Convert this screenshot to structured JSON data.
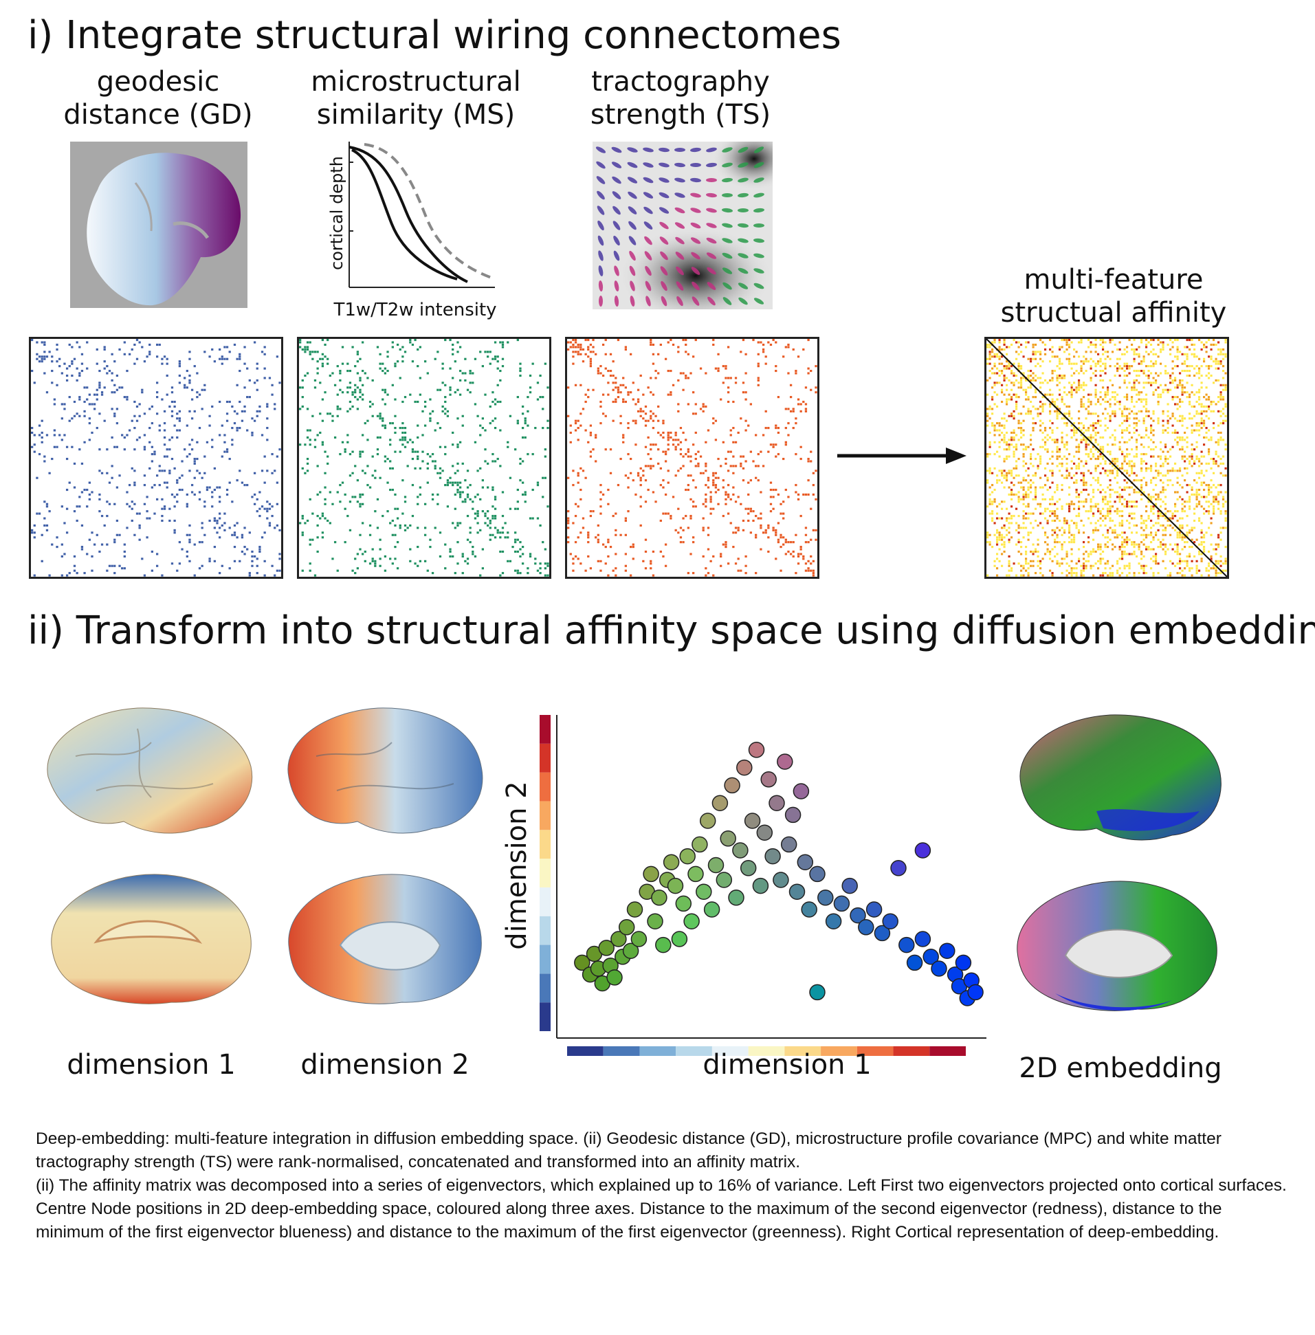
{
  "section_i": {
    "title": "i) Integrate structural wiring connectomes",
    "panels": [
      {
        "label_line1": "geodesic",
        "label_line2": "distance (GD)"
      },
      {
        "label_line1": "microstructural",
        "label_line2": "similarity (MS)"
      },
      {
        "label_line1": "tractography",
        "label_line2": "strength (TS)"
      }
    ],
    "ms_plot": {
      "ylabel": "cortical depth",
      "xlabel": "T1w/T2w intensity"
    },
    "result_label_line1": "multi-feature",
    "result_label_line2": "structual affinity",
    "colors": {
      "gd": "#4060a8",
      "ms": "#1e9060",
      "ts": "#e85a24",
      "affinity_light": "#ffe84a",
      "affinity_mid": "#f0a020",
      "affinity_dark": "#d03010"
    }
  },
  "section_ii": {
    "title": "ii) Transform into structural affinity space using diffusion embedding",
    "labels": {
      "dim1": "dimension 1",
      "dim2": "dimension 2",
      "embedding": "2D embedding"
    },
    "scatter": {
      "xlabel": "dimension 1",
      "ylabel": "dimension 2"
    }
  },
  "caption": {
    "p1": "Deep-embedding: multi-feature integration in diffusion embedding space. (ii) Geodesic distance (GD), microstructure profile covariance (MPC) and white matter tractography strength (TS) were rank-normalised, concatenated and transformed into an affinity matrix.",
    "p2": "(ii) The affinity matrix was decomposed into a series of eigenvectors, which explained up to 16% of variance. Left First two eigenvectors projected onto cortical surfaces. Centre Node positions in 2D deep-embedding space, coloured along three axes. Distance to the maximum of the second eigenvector (redness), distance to the minimum of the first eigenvector blueness) and distance to the maximum of the first eigenvector (greenness). Right Cortical representation of deep-embedding."
  },
  "chart_data": {
    "type": "scatter",
    "xlabel": "dimension 1",
    "ylabel": "dimension 2",
    "colorbar": [
      "#2a3a8c",
      "#4a78b8",
      "#7fb0d8",
      "#b8d8ea",
      "#e8f2f8",
      "#faf6c4",
      "#fbd98a",
      "#f8a860",
      "#ee6e40",
      "#d43428",
      "#a80c2c"
    ],
    "points": [
      [
        0.02,
        0.22
      ],
      [
        0.04,
        0.18
      ],
      [
        0.05,
        0.25
      ],
      [
        0.06,
        0.2
      ],
      [
        0.07,
        0.15
      ],
      [
        0.08,
        0.27
      ],
      [
        0.09,
        0.21
      ],
      [
        0.1,
        0.17
      ],
      [
        0.11,
        0.3
      ],
      [
        0.12,
        0.24
      ],
      [
        0.13,
        0.34
      ],
      [
        0.14,
        0.26
      ],
      [
        0.15,
        0.4
      ],
      [
        0.16,
        0.3
      ],
      [
        0.18,
        0.46
      ],
      [
        0.19,
        0.52
      ],
      [
        0.2,
        0.36
      ],
      [
        0.21,
        0.44
      ],
      [
        0.22,
        0.28
      ],
      [
        0.23,
        0.5
      ],
      [
        0.24,
        0.56
      ],
      [
        0.25,
        0.48
      ],
      [
        0.26,
        0.3
      ],
      [
        0.27,
        0.42
      ],
      [
        0.28,
        0.58
      ],
      [
        0.29,
        0.36
      ],
      [
        0.3,
        0.52
      ],
      [
        0.31,
        0.62
      ],
      [
        0.32,
        0.46
      ],
      [
        0.33,
        0.7
      ],
      [
        0.34,
        0.4
      ],
      [
        0.35,
        0.55
      ],
      [
        0.36,
        0.76
      ],
      [
        0.37,
        0.5
      ],
      [
        0.38,
        0.64
      ],
      [
        0.39,
        0.82
      ],
      [
        0.4,
        0.44
      ],
      [
        0.41,
        0.6
      ],
      [
        0.42,
        0.88
      ],
      [
        0.43,
        0.54
      ],
      [
        0.44,
        0.7
      ],
      [
        0.45,
        0.94
      ],
      [
        0.46,
        0.48
      ],
      [
        0.47,
        0.66
      ],
      [
        0.48,
        0.84
      ],
      [
        0.49,
        0.58
      ],
      [
        0.5,
        0.76
      ],
      [
        0.51,
        0.5
      ],
      [
        0.52,
        0.9
      ],
      [
        0.53,
        0.62
      ],
      [
        0.54,
        0.72
      ],
      [
        0.55,
        0.46
      ],
      [
        0.56,
        0.8
      ],
      [
        0.57,
        0.56
      ],
      [
        0.58,
        0.4
      ],
      [
        0.6,
        0.52
      ],
      [
        0.62,
        0.44
      ],
      [
        0.64,
        0.36
      ],
      [
        0.66,
        0.42
      ],
      [
        0.68,
        0.48
      ],
      [
        0.7,
        0.38
      ],
      [
        0.72,
        0.34
      ],
      [
        0.74,
        0.4
      ],
      [
        0.76,
        0.32
      ],
      [
        0.78,
        0.36
      ],
      [
        0.8,
        0.54
      ],
      [
        0.82,
        0.28
      ],
      [
        0.84,
        0.22
      ],
      [
        0.86,
        0.3
      ],
      [
        0.88,
        0.24
      ],
      [
        0.9,
        0.2
      ],
      [
        0.92,
        0.26
      ],
      [
        0.94,
        0.18
      ],
      [
        0.95,
        0.14
      ],
      [
        0.96,
        0.22
      ],
      [
        0.97,
        0.1
      ],
      [
        0.98,
        0.16
      ],
      [
        0.99,
        0.12
      ],
      [
        0.86,
        0.6
      ],
      [
        0.6,
        0.12
      ]
    ]
  }
}
